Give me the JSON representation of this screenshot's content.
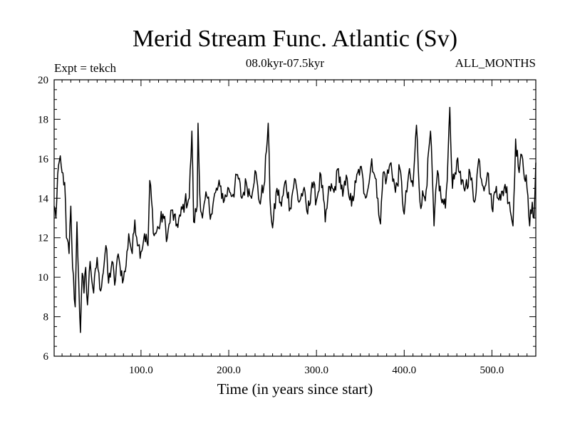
{
  "chart_data": {
    "type": "line",
    "title": "Merid Stream Func. Atlantic (Sv)",
    "subtitle_left": "Expt = tekch",
    "subtitle_center": "08.0kyr-07.5kyr",
    "subtitle_right": "ALL_MONTHS",
    "xlabel": "Time (in years since start)",
    "ylabel": "",
    "xlim": [
      1,
      550
    ],
    "ylim": [
      6,
      20
    ],
    "x_tick_values": [
      100,
      200,
      300,
      400,
      500
    ],
    "x_tick_labels": [
      "100.0",
      "200.0",
      "300.0",
      "400.0",
      "500.0"
    ],
    "y_tick_values": [
      6,
      8,
      10,
      12,
      14,
      16,
      18,
      20
    ],
    "y_tick_labels": [
      "6",
      "8",
      "10",
      "12",
      "14",
      "16",
      "18",
      "20"
    ],
    "grid": false,
    "series": [
      {
        "name": "Merid Stream Func. Atlantic",
        "color": "#000000",
        "anchors_x": [
          1,
          3,
          5,
          7,
          10,
          13,
          15,
          18,
          20,
          22,
          25,
          27,
          29,
          31,
          33,
          35,
          37,
          39,
          42,
          46,
          50,
          53,
          56,
          60,
          63,
          67,
          70,
          73,
          76,
          80,
          83,
          86,
          90,
          93,
          97,
          100,
          104,
          108,
          110,
          115,
          120,
          125,
          130,
          135,
          140,
          145,
          150,
          155,
          158,
          160,
          164,
          165,
          167,
          170,
          175,
          180,
          185,
          190,
          195,
          200,
          205,
          210,
          215,
          220,
          225,
          230,
          235,
          240,
          243,
          245,
          247,
          250,
          255,
          260,
          265,
          270,
          275,
          280,
          285,
          290,
          295,
          300,
          305,
          310,
          315,
          320,
          325,
          330,
          335,
          340,
          345,
          350,
          355,
          360,
          363,
          366,
          370,
          373,
          376,
          380,
          385,
          390,
          395,
          400,
          405,
          410,
          414,
          418,
          425,
          430,
          434,
          438,
          442,
          447,
          450,
          452,
          455,
          460,
          465,
          470,
          475,
          480,
          485,
          490,
          495,
          500,
          505,
          510,
          515,
          520,
          524,
          527,
          530,
          535,
          540,
          543,
          546,
          548,
          550
        ],
        "anchors_y": [
          13.6,
          13.0,
          15.2,
          15.9,
          15.3,
          14.8,
          12.0,
          11.2,
          13.6,
          10.5,
          8.5,
          12.8,
          9.8,
          7.2,
          10.2,
          9.2,
          10.5,
          8.6,
          10.8,
          9.2,
          11.0,
          9.4,
          10.0,
          11.6,
          9.7,
          10.8,
          9.6,
          11.0,
          10.6,
          9.9,
          10.6,
          12.2,
          11.2,
          12.9,
          11.6,
          11.3,
          12.2,
          11.6,
          14.9,
          12.1,
          12.5,
          13.2,
          12.0,
          13.4,
          12.6,
          13.1,
          13.8,
          14.0,
          17.4,
          12.8,
          13.6,
          17.8,
          14.2,
          13.0,
          14.1,
          13.2,
          14.3,
          14.6,
          13.9,
          14.5,
          14.2,
          15.2,
          14.0,
          14.8,
          14.1,
          15.4,
          13.8,
          14.6,
          16.4,
          17.8,
          14.0,
          12.5,
          14.5,
          13.6,
          14.9,
          13.5,
          15.0,
          13.8,
          14.4,
          13.2,
          14.8,
          13.9,
          15.2,
          12.8,
          14.6,
          14.3,
          15.5,
          14.1,
          15.0,
          13.6,
          14.8,
          15.6,
          14.2,
          14.8,
          16.0,
          15.2,
          14.0,
          12.7,
          15.3,
          15.0,
          15.8,
          14.3,
          15.5,
          13.2,
          15.2,
          14.6,
          17.7,
          13.8,
          14.4,
          17.4,
          12.6,
          15.4,
          14.0,
          13.5,
          16.2,
          18.6,
          14.5,
          15.9,
          14.7,
          14.6,
          15.3,
          13.8,
          16.0,
          14.6,
          15.3,
          13.5,
          14.6,
          13.9,
          14.7,
          13.8,
          12.6,
          17.0,
          15.6,
          16.0,
          14.5,
          12.6,
          13.8,
          13.0,
          15.8
        ]
      }
    ]
  }
}
